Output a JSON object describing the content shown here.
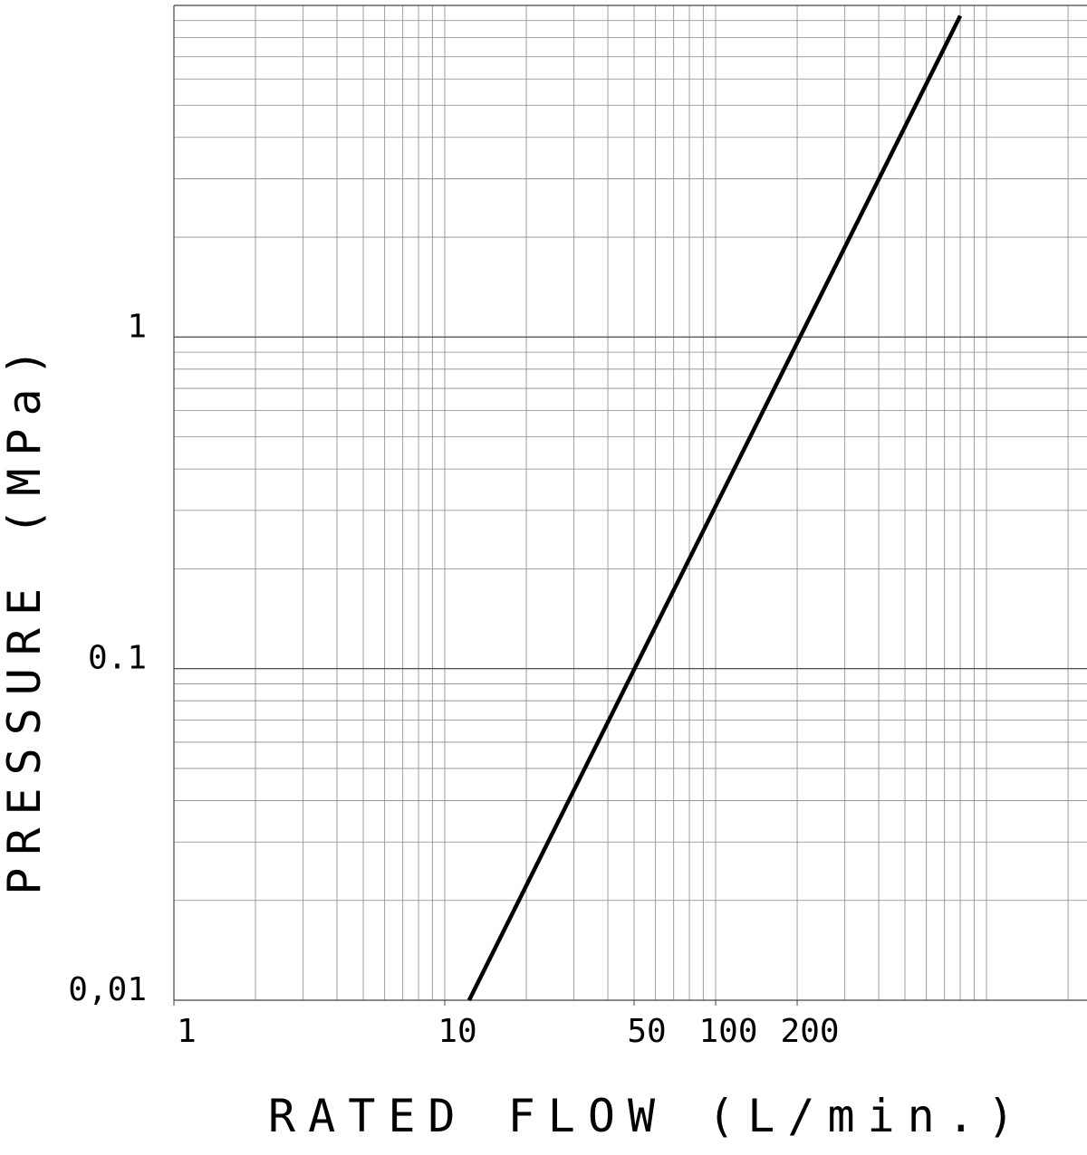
{
  "chart_data": {
    "type": "line",
    "x_label": "RATED FLOW (L/min.)",
    "y_label": "PRESSURE (MPa)",
    "x": [
      12.3,
      800
    ],
    "series": [
      {
        "color": "#000000",
        "values": [
          0.01,
          9.3
        ]
      }
    ],
    "log_x": true,
    "log_y": true,
    "grid": true,
    "xlim": [
      1,
      2350
    ],
    "ylim": [
      0.01,
      10
    ],
    "xticks": [
      1,
      10,
      50,
      100,
      200
    ],
    "yticks": [
      {
        "value": 0.01,
        "label": "0,01"
      },
      0.1,
      1
    ]
  }
}
